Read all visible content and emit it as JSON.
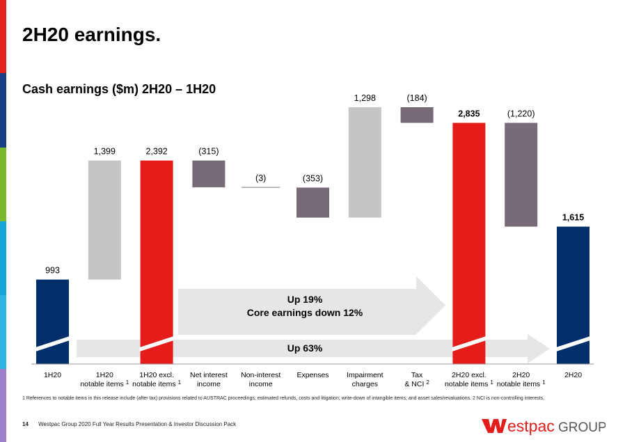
{
  "page": {
    "title": "2H20 earnings.",
    "subtitle": "Cash earnings ($m) 2H20 – 1H20",
    "footnote": "1 References to notable items in this release include (after tax) provisions related to AUSTRAC proceedings; estimated refunds, costs and litigation; write-down of intangible items; and asset sales/revaluations. 2 NCI is non-controlling interests.",
    "page_number": "14",
    "footer_text": "Westpac Group 2020 Full Year Results Presentation & Investor Discussion Pack",
    "logo_text": "estpac",
    "logo_group": "GROUP"
  },
  "colors": {
    "navy": "#002f6c",
    "red": "#e41d1a",
    "grey": "#c6c5c3",
    "mauve": "#776b77",
    "arrow": "#e6e6e6",
    "stripes": [
      "#e2231a",
      "#1b3f87",
      "#7ab92c",
      "#15a7d9",
      "#30b3e6",
      "#9c7fc6"
    ]
  },
  "chart_data": {
    "type": "waterfall",
    "title": "Cash earnings ($m) 2H20 – 1H20",
    "categories": [
      {
        "label": [
          "1H20"
        ],
        "sup": ""
      },
      {
        "label": [
          "1H20",
          "notable items"
        ],
        "sup": "1"
      },
      {
        "label": [
          "1H20 excl.",
          "notable items"
        ],
        "sup": "1"
      },
      {
        "label": [
          "Net interest",
          "income"
        ],
        "sup": ""
      },
      {
        "label": [
          "Non-interest",
          "income"
        ],
        "sup": ""
      },
      {
        "label": [
          "Expenses"
        ],
        "sup": ""
      },
      {
        "label": [
          "Impairment",
          "charges"
        ],
        "sup": ""
      },
      {
        "label": [
          "Tax",
          "& NCI"
        ],
        "sup": "2"
      },
      {
        "label": [
          "2H20 excl.",
          "notable items"
        ],
        "sup": "1"
      },
      {
        "label": [
          "2H20",
          "notable items"
        ],
        "sup": "1"
      },
      {
        "label": [
          "2H20"
        ],
        "sup": ""
      }
    ],
    "bars": [
      {
        "value_label": "993",
        "start": 0,
        "end": 993,
        "kind": "total",
        "color": "navy",
        "bold": false,
        "broken": true
      },
      {
        "value_label": "1,399",
        "start": 993,
        "end": 2392,
        "kind": "delta",
        "color": "grey",
        "bold": false,
        "broken": false
      },
      {
        "value_label": "2,392",
        "start": 0,
        "end": 2392,
        "kind": "total",
        "color": "red",
        "bold": false,
        "broken": true
      },
      {
        "value_label": "(315)",
        "start": 2392,
        "end": 2077,
        "kind": "delta",
        "color": "mauve",
        "bold": false,
        "broken": false
      },
      {
        "value_label": "(3)",
        "start": 2077,
        "end": 2074,
        "kind": "delta",
        "color": "mauve",
        "bold": false,
        "broken": false
      },
      {
        "value_label": "(353)",
        "start": 2074,
        "end": 1721,
        "kind": "delta",
        "color": "mauve",
        "bold": false,
        "broken": false
      },
      {
        "value_label": "1,298",
        "start": 1721,
        "end": 3019,
        "kind": "delta",
        "color": "grey",
        "bold": false,
        "broken": false
      },
      {
        "value_label": "(184)",
        "start": 3019,
        "end": 2835,
        "kind": "delta",
        "color": "mauve",
        "bold": false,
        "broken": false
      },
      {
        "value_label": "2,835",
        "start": 0,
        "end": 2835,
        "kind": "total",
        "color": "red",
        "bold": true,
        "broken": true
      },
      {
        "value_label": "(1,220)",
        "start": 2835,
        "end": 1615,
        "kind": "delta",
        "color": "mauve",
        "bold": false,
        "broken": false
      },
      {
        "value_label": "1,615",
        "start": 0,
        "end": 1615,
        "kind": "total",
        "color": "navy",
        "bold": true,
        "broken": true
      }
    ],
    "annotations": [
      {
        "text": [
          "Up 19%",
          "Core earnings down 12%"
        ],
        "from_index": 2,
        "to_index": 8
      },
      {
        "text": [
          "Up 63%"
        ],
        "from_index": 0,
        "to_index": 10
      }
    ]
  }
}
